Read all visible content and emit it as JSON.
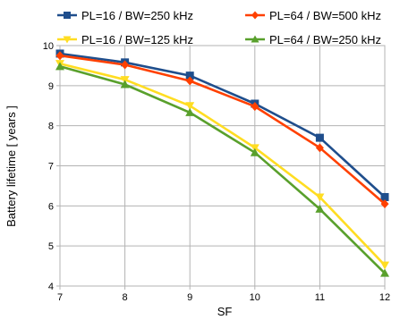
{
  "chart_data": {
    "type": "line",
    "xlabel": "SF",
    "ylabel": "Battery lifetime [ years ]",
    "x": [
      7,
      8,
      9,
      10,
      11,
      12
    ],
    "xlim": [
      7,
      12
    ],
    "ylim": [
      4,
      10
    ],
    "yticks": [
      4,
      5,
      6,
      7,
      8,
      9,
      10
    ],
    "grid": true,
    "legend": "top",
    "series": [
      {
        "name": "PL=16 / BW=250 kHz",
        "color": "#1f4e8c",
        "marker": "square",
        "values": [
          9.8,
          9.58,
          9.25,
          8.55,
          7.7,
          6.22
        ]
      },
      {
        "name": "PL=64 / BW=500 kHz",
        "color": "#ff4000",
        "marker": "diamond",
        "values": [
          9.75,
          9.52,
          9.12,
          8.48,
          7.45,
          6.05
        ]
      },
      {
        "name": "PL=16 / BW=125 kHz",
        "color": "#ffdd22",
        "marker": "triangle-down",
        "values": [
          9.55,
          9.15,
          8.5,
          7.45,
          6.22,
          4.52
        ]
      },
      {
        "name": "PL=64 / BW=250 kHz",
        "color": "#59a02c",
        "marker": "triangle-up",
        "values": [
          9.48,
          9.03,
          8.33,
          7.33,
          5.92,
          4.32
        ]
      }
    ]
  }
}
